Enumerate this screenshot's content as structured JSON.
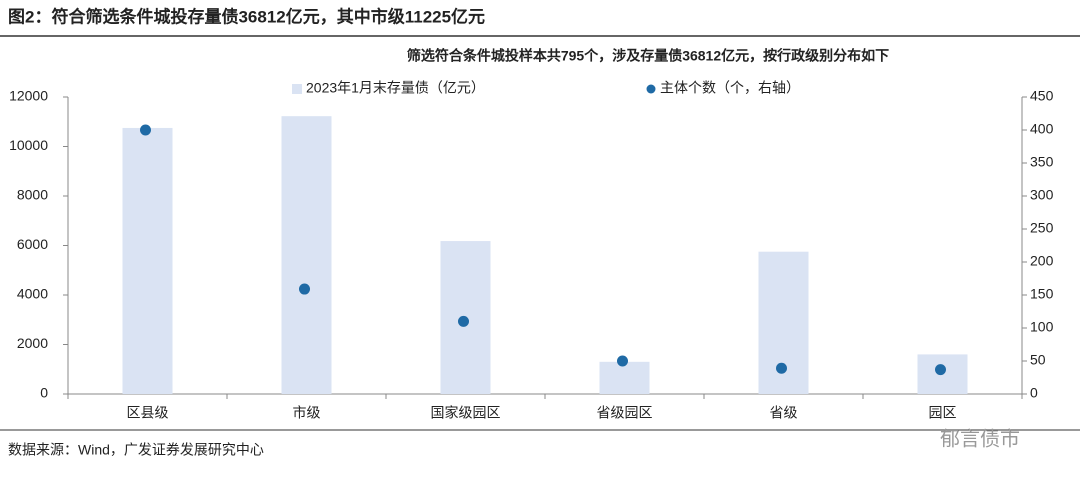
{
  "chart_data": {
    "type": "bar_dot",
    "title": "图2：符合筛选条件城投存量债36812亿元，其中市级11225亿元",
    "subtitle": "筛选符合条件城投样本共795个，涉及存量债36812亿元，按行政级别分布如下",
    "source": "数据来源：Wind，广发证券发展研究中心",
    "watermark": "郁言债市",
    "categories": [
      "区县级",
      "市级",
      "国家级园区",
      "省级园区",
      "省级",
      "园区"
    ],
    "series": [
      {
        "name": "2023年1月末存量债（亿元）",
        "color": "#dae3f3",
        "type": "bar",
        "values": [
          10750,
          11225,
          6180,
          1300,
          5750,
          1600
        ]
      },
      {
        "name": "主体个数（个，右轴）",
        "color": "#1f6aa5",
        "type": "dot",
        "axis": "y2",
        "values": [
          400,
          159,
          110,
          50,
          39,
          37
        ]
      }
    ],
    "ylim": [
      0,
      12000
    ],
    "yticks": [
      0,
      2000,
      4000,
      6000,
      8000,
      10000,
      12000
    ],
    "y2lim": [
      0,
      450
    ],
    "y2ticks": [
      0,
      50,
      100,
      150,
      200,
      250,
      300,
      350,
      400,
      450
    ]
  }
}
